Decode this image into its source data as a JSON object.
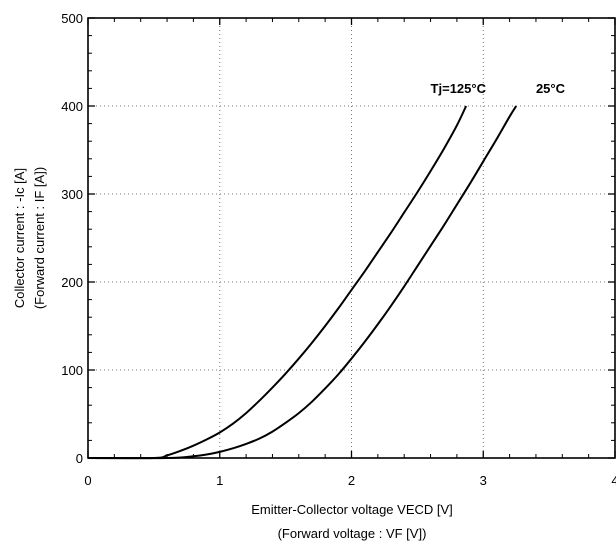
{
  "chart_data": {
    "type": "line",
    "title": "",
    "xlabel": "Emitter-Collector voltage VECD [V]",
    "xlabel_line2": "(Forward voltage : VF [V])",
    "ylabel": "Collector current : -Ic [A]",
    "ylabel_line2": "(Forward current : IF [A])",
    "xlim": [
      0,
      4
    ],
    "ylim": [
      0,
      500
    ],
    "x_ticks": [
      "0",
      "1",
      "2",
      "3",
      "4"
    ],
    "y_ticks": [
      "0",
      "100",
      "200",
      "300",
      "400",
      "500"
    ],
    "grid": true,
    "grid_style": "dotted",
    "series": [
      {
        "name": "Tj=125°C",
        "x": [
          0.0,
          0.5,
          0.6,
          0.7,
          0.8,
          0.9,
          1.0,
          1.1,
          1.2,
          1.3,
          1.4,
          1.5,
          1.6,
          1.7,
          1.8,
          1.9,
          2.0,
          2.1,
          2.2,
          2.3,
          2.4,
          2.5,
          2.6,
          2.7,
          2.8,
          2.87
        ],
        "y": [
          0,
          0,
          3,
          8,
          14,
          21,
          29,
          39,
          51,
          65,
          80,
          96,
          113,
          131,
          150,
          170,
          191,
          212,
          234,
          256,
          279,
          302,
          326,
          351,
          378,
          400
        ]
      },
      {
        "name": "25°C",
        "x": [
          0.0,
          0.6,
          0.8,
          0.9,
          1.0,
          1.1,
          1.2,
          1.3,
          1.4,
          1.5,
          1.6,
          1.7,
          1.8,
          1.9,
          2.0,
          2.1,
          2.2,
          2.3,
          2.4,
          2.5,
          2.6,
          2.7,
          2.8,
          2.9,
          3.0,
          3.1,
          3.2,
          3.25
        ],
        "y": [
          0,
          0,
          2,
          4,
          7,
          11,
          16,
          22,
          30,
          40,
          51,
          64,
          79,
          95,
          113,
          132,
          152,
          173,
          195,
          218,
          241,
          264,
          288,
          312,
          337,
          362,
          388,
          400
        ]
      }
    ],
    "annotations": [
      {
        "text": "Tj=125°C",
        "x": 2.6,
        "y": 415
      },
      {
        "text": "25°C",
        "x": 3.4,
        "y": 415
      }
    ],
    "colors": {
      "line": "#000000",
      "grid": "#777777",
      "background": "#ffffff"
    }
  }
}
